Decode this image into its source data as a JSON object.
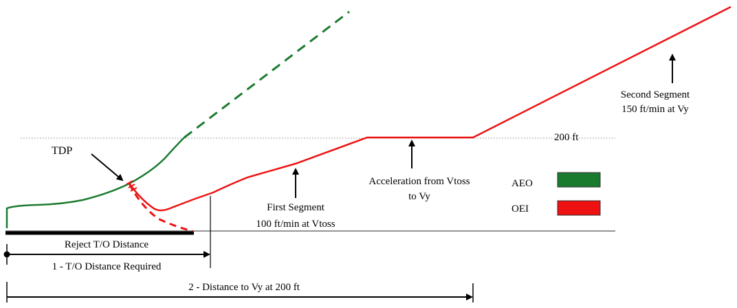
{
  "labels": {
    "tdp": "TDP",
    "alt_200": "200 ft",
    "first_segment_1": "First Segment",
    "first_segment_2": "100 ft/min at Vtoss",
    "accel_1": "Acceleration from Vtoss",
    "accel_2": "to Vy",
    "second_segment_1": "Second Segment",
    "second_segment_2": "150 ft/min at Vy",
    "reject_distance": "Reject T/O Distance",
    "to_distance_required": "1 - T/O Distance Required",
    "distance_to_vy": "2 - Distance to Vy at 200 ft"
  },
  "legend": [
    {
      "label": "AEO",
      "color": "#1a7a2e"
    },
    {
      "label": "OEI",
      "color": "#ee1111"
    }
  ],
  "colors": {
    "aeo": "#1a7a2e",
    "oei": "#ee1111",
    "ink": "#000000",
    "grid": "#888888"
  }
}
